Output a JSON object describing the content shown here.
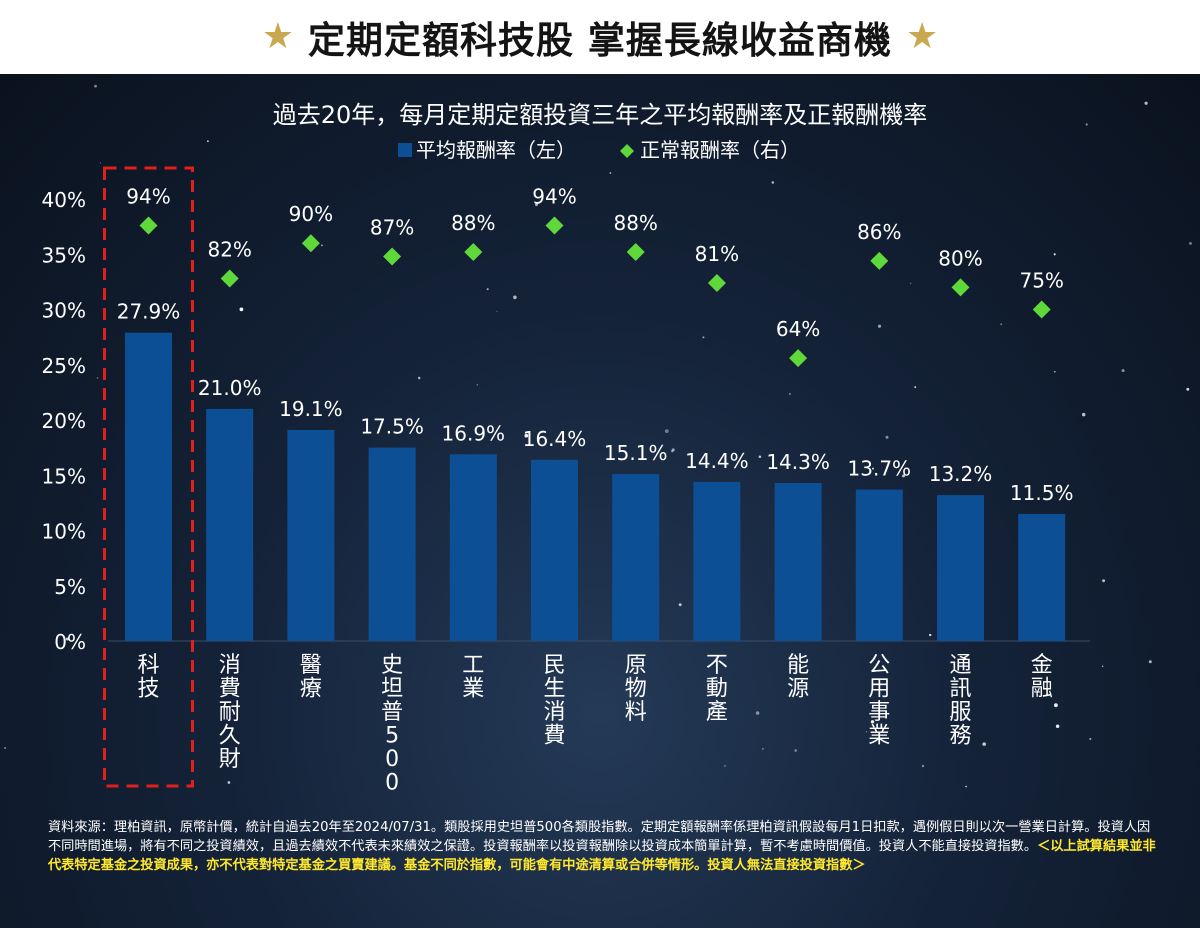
{
  "header": {
    "title": "定期定額科技股 掌握長線收益商機",
    "star_glyph": "★",
    "star_color": "#c9a94f"
  },
  "chart_data": {
    "type": "bar",
    "title": "過去20年，每月定期定額投資三年之平均報酬率及正報酬機率",
    "legend": [
      "平均報酬率（左）",
      "正常報酬率（右）"
    ],
    "legend_placement": "top-center",
    "categories": [
      "科技",
      "消費耐久財",
      "醫療",
      "史坦普500",
      "工業",
      "民生消費",
      "原物料",
      "不動產",
      "能源",
      "公用事業",
      "通訊服務",
      "金融"
    ],
    "series": [
      {
        "name": "平均報酬率（左）",
        "type": "bar",
        "axis": "left",
        "values": [
          27.9,
          21.0,
          19.1,
          17.5,
          16.9,
          16.4,
          15.1,
          14.4,
          14.3,
          13.7,
          13.2,
          11.5
        ],
        "labels": [
          "27.9%",
          "21.0%",
          "19.1%",
          "17.5%",
          "16.9%",
          "16.4%",
          "15.1%",
          "14.4%",
          "14.3%",
          "13.7%",
          "13.2%",
          "11.5%"
        ],
        "color": "#0d4f95"
      },
      {
        "name": "正常報酬率（右）",
        "type": "scatter",
        "axis": "right",
        "values": [
          94,
          82,
          90,
          87,
          88,
          94,
          88,
          81,
          64,
          86,
          80,
          75
        ],
        "labels": [
          "94%",
          "82%",
          "90%",
          "87%",
          "88%",
          "94%",
          "88%",
          "81%",
          "64%",
          "86%",
          "80%",
          "75%"
        ],
        "color": "#5fd83a"
      }
    ],
    "y_left": {
      "ticks": [
        "0%",
        "5%",
        "10%",
        "15%",
        "20%",
        "25%",
        "30%",
        "35%",
        "40%"
      ],
      "ylim": [
        0,
        40
      ]
    },
    "y_right": {
      "ylim": [
        0,
        100
      ],
      "tick_labels_shown": false
    },
    "grid": false,
    "highlight_category": "科技",
    "highlight_color": "#e0201a"
  },
  "footnote": {
    "text": "資料來源：理柏資訊，原幣計價，統計自過去20年至2024/07/31。類股採用史坦普500各類股指數。定期定額報酬率係理柏資訊假設每月1日扣款，遇例假日則以次一營業日計算。投資人因不同時間進場，將有不同之投資績效，且過去績效不代表未來績效之保證。投資報酬率以投資報酬除以投資成本簡單計算，暫不考慮時間價值。投資人不能直接投資指數。",
    "highlight": "＜以上試算結果並非代表特定基金之投資成果，亦不代表對特定基金之買賣建議。基金不同於指數，可能會有中途清算或合併等情形。投資人無法直接投資指數＞",
    "highlight_color": "#ffe82e"
  }
}
